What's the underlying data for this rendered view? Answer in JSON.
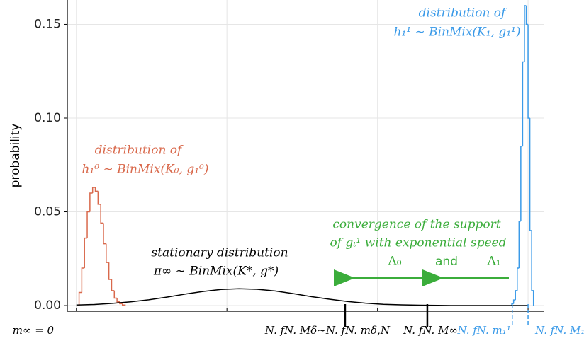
{
  "chart_data": {
    "type": "histogram",
    "ylabel": "probability",
    "ylim": [
      -0.003,
      0.163
    ],
    "yticks": [
      {
        "value": 0,
        "label": "0.00"
      },
      0.05,
      {
        "value": 0.1,
        "label": "0.10"
      },
      0.15
    ],
    "xlim": [
      -2,
      103.6
    ],
    "xgrid": [
      0,
      33.33,
      66.67,
      100
    ],
    "xticks": [
      {
        "value": 0,
        "label": "m∞ = 0"
      },
      {
        "value": 59.5,
        "label": "N. fN. Mδ∼N. fN. mδ,N"
      },
      {
        "value": 77.7,
        "label": "N. fN. M∞"
      },
      {
        "value": 96.5,
        "label": "N. fN. m₁¹"
      },
      {
        "value": 100,
        "label": "N. fN. M₁¹"
      }
    ],
    "xtick_colors": [
      "#000000",
      "#000000",
      "#000000",
      "#3a9ae8",
      "#3a9ae8"
    ],
    "grid": true,
    "series": [
      {
        "type": "step",
        "color": "#d9694c",
        "bins": [
          0.6,
          1.2,
          1.8,
          2.4,
          3.0,
          3.6,
          4.2,
          4.8,
          5.4,
          6.0,
          6.6,
          7.2,
          7.8,
          8.4,
          9.0,
          9.6,
          10.2,
          10.8
        ],
        "values": [
          0.007,
          0.02,
          0.036,
          0.05,
          0.06,
          0.063,
          0.061,
          0.054,
          0.044,
          0.033,
          0.023,
          0.014,
          0.008,
          0.004,
          0.002,
          0.001,
          0.0003
        ]
      },
      {
        "type": "step",
        "color": "#3a9ae8",
        "bins": [
          96.4,
          96.8,
          97.2,
          97.6,
          98.0,
          98.4,
          98.8,
          99.2,
          99.6,
          100.0,
          100.4,
          100.8,
          101.2
        ],
        "values": [
          0.001,
          0.003,
          0.008,
          0.02,
          0.045,
          0.085,
          0.13,
          0.16,
          0.15,
          0.1,
          0.04,
          0.008
        ]
      },
      {
        "type": "line",
        "color": "#000000",
        "x": [
          0,
          4,
          8,
          12,
          16,
          20,
          24,
          28,
          32,
          36,
          40,
          44,
          48,
          52,
          56,
          60,
          64,
          68,
          72,
          76,
          80,
          84,
          100
        ],
        "values": [
          0.0003,
          0.0006,
          0.0012,
          0.002,
          0.0031,
          0.0045,
          0.0061,
          0.0075,
          0.0086,
          0.009,
          0.0087,
          0.0078,
          0.0064,
          0.0048,
          0.0034,
          0.0022,
          0.0013,
          0.0007,
          0.0004,
          0.0002,
          0.0001,
          0,
          0
        ]
      }
    ],
    "annotations": [
      "distribution of",
      "h₁¹ ∼ BinMix(K₁, g₁¹)",
      "distribution of",
      "h₁⁰ ∼ BinMix(K₀, g₁⁰)",
      "stationary distribution",
      "π∞ ∼ BinMix(K*, g*)",
      "convergence of the support",
      "of gₜ¹ with exponential speed",
      "Λ₀",
      "and",
      "Λ₁"
    ]
  }
}
